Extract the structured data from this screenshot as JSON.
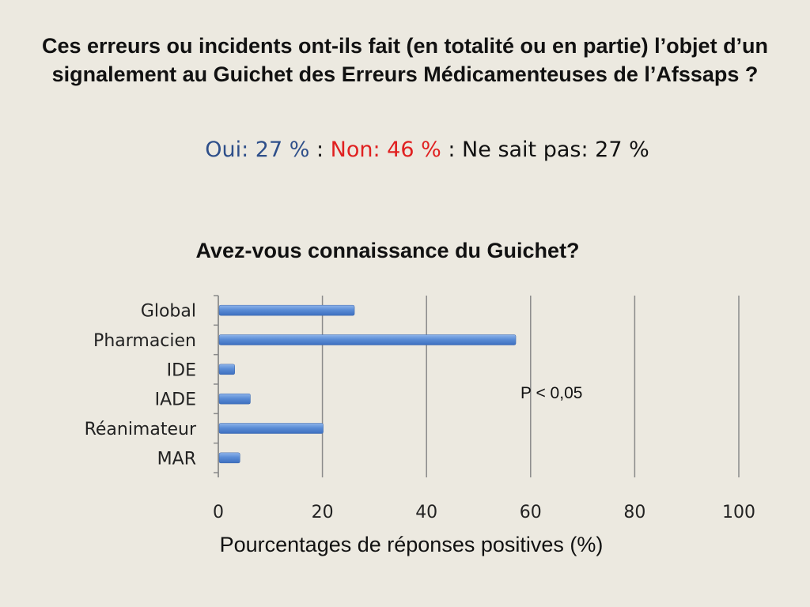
{
  "slide": {
    "title": "Ces erreurs ou incidents ont-ils fait (en totalité ou en partie) l’objet d’un signalement au Guichet des Erreurs Médicamenteuses de l’Afssaps ?",
    "answers": {
      "yes_label": "Oui:",
      "yes_value": "27 %",
      "sep1": " : ",
      "no_label": "Non:",
      "no_value": "46 %",
      "sep2": " : ",
      "unknown_label": "Ne sait pas:",
      "unknown_value": "27 %"
    },
    "colors": {
      "yes": "#2e4f8a",
      "no": "#e02020",
      "background": "#ece9e0"
    }
  },
  "chart_data": {
    "type": "bar",
    "orientation": "horizontal",
    "title": "Avez-vous connaissance du Guichet?",
    "categories": [
      "Global",
      "Pharmacien",
      "IDE",
      "IADE",
      "Réanimateur",
      "MAR"
    ],
    "values": [
      26,
      57,
      3,
      6,
      20,
      4
    ],
    "xlabel": "Pourcentages de réponses positives  (%)",
    "ylabel": "",
    "xlim": [
      0,
      100
    ],
    "xticks": [
      "0",
      "20",
      "40",
      "60",
      "80",
      "100"
    ],
    "grid": "vertical",
    "bar_color": "#5b8dd6",
    "annotation": "P < 0,05"
  }
}
